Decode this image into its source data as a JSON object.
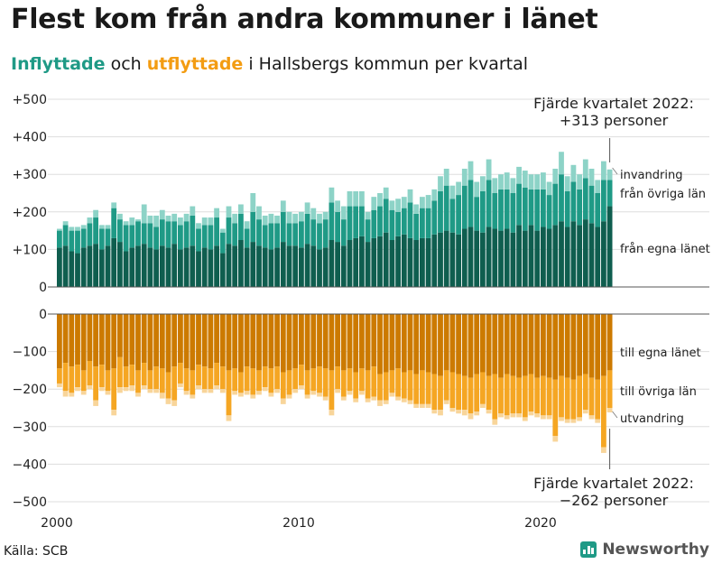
{
  "title": "Flest kom från andra kommuner i länet",
  "subtitle": {
    "part1": "Inflyttade",
    "part2": " och ",
    "part3": "utflyttade",
    "part4": " i Hallsbergs kommun per kvartal"
  },
  "source": "Källa: SCB",
  "brand": "Newsworthy",
  "colors": {
    "in_own": "#0f5e4f",
    "in_other": "#1f9a86",
    "in_immig": "#8dd3c7",
    "out_own": "#cc7a00",
    "out_other": "#f5a623",
    "out_emig": "#f8d59a",
    "subtitle_in": "#1f9a86",
    "subtitle_out": "#f39c12",
    "grid": "#dddddd",
    "brand": "#1f9a86"
  },
  "annotations": {
    "top_line1": "Fjärde kvartalet 2022:",
    "top_line2": "+313 personer",
    "bottom_line1": "Fjärde kvartalet 2022:",
    "bottom_line2": "−262 personer"
  },
  "series_labels": {
    "in_immig": "invandring",
    "in_other": "från övriga län",
    "in_own": "från egna länet",
    "out_own": "till egna länet",
    "out_other": "till övriga län",
    "out_emig": "utvandring"
  },
  "chart_data": {
    "type": "bar",
    "stacked": true,
    "title": "Flest kom från andra kommuner i länet",
    "subtitle": "Inflyttade och utflyttade i Hallsbergs kommun per kvartal",
    "x_start": "2000 Q1",
    "x_end": "2022 Q4",
    "x_ticks": [
      "2000",
      "2010",
      "2020"
    ],
    "y_ticks_top": [
      "+500",
      "+400",
      "+300",
      "+200",
      "+100",
      "0"
    ],
    "y_ticks_bottom": [
      "0",
      "−100",
      "−200",
      "−300",
      "−400",
      "−500"
    ],
    "ylim_top": [
      0,
      500
    ],
    "ylim_bottom": [
      -500,
      0
    ],
    "in_series": [
      {
        "name": "från egna länet",
        "values": [
          105,
          110,
          95,
          90,
          105,
          110,
          115,
          100,
          110,
          130,
          120,
          95,
          105,
          110,
          115,
          105,
          100,
          110,
          105,
          115,
          100,
          105,
          110,
          95,
          105,
          100,
          110,
          90,
          115,
          110,
          125,
          105,
          120,
          110,
          105,
          100,
          105,
          120,
          110,
          110,
          105,
          115,
          110,
          100,
          105,
          125,
          120,
          110,
          125,
          130,
          135,
          120,
          130,
          135,
          145,
          125,
          135,
          140,
          130,
          125,
          130,
          130,
          140,
          145,
          150,
          145,
          140,
          155,
          160,
          150,
          145,
          160,
          155,
          150,
          155,
          145,
          165,
          150,
          165,
          150,
          160,
          155,
          165,
          175,
          160,
          175,
          165,
          180,
          170,
          160,
          175,
          215
        ]
      },
      {
        "name": "från övriga län",
        "values": [
          45,
          55,
          55,
          60,
          50,
          60,
          70,
          55,
          45,
          80,
          60,
          70,
          60,
          65,
          55,
          65,
          60,
          70,
          70,
          60,
          65,
          70,
          80,
          60,
          60,
          65,
          75,
          55,
          70,
          60,
          70,
          50,
          80,
          70,
          60,
          70,
          65,
          80,
          60,
          60,
          70,
          80,
          70,
          70,
          75,
          100,
          80,
          70,
          90,
          85,
          80,
          60,
          75,
          80,
          90,
          80,
          65,
          70,
          95,
          70,
          80,
          80,
          90,
          110,
          120,
          90,
          105,
          115,
          125,
          90,
          110,
          125,
          95,
          110,
          105,
          105,
          110,
          115,
          95,
          110,
          100,
          90,
          110,
          125,
          95,
          105,
          95,
          110,
          100,
          90,
          110,
          70
        ]
      },
      {
        "name": "invandring",
        "values": [
          5,
          10,
          10,
          10,
          10,
          15,
          20,
          10,
          10,
          15,
          15,
          10,
          20,
          5,
          50,
          20,
          30,
          25,
          15,
          20,
          20,
          20,
          25,
          15,
          20,
          20,
          25,
          10,
          30,
          25,
          25,
          20,
          50,
          35,
          25,
          25,
          20,
          30,
          30,
          25,
          25,
          30,
          30,
          25,
          20,
          40,
          30,
          35,
          40,
          40,
          40,
          20,
          35,
          35,
          30,
          25,
          35,
          30,
          35,
          25,
          30,
          35,
          30,
          40,
          45,
          35,
          35,
          45,
          50,
          40,
          40,
          55,
          40,
          40,
          45,
          40,
          45,
          45,
          40,
          40,
          45,
          35,
          40,
          60,
          40,
          45,
          40,
          50,
          45,
          35,
          50,
          28
        ]
      }
    ],
    "out_series": [
      {
        "name": "till egna länet",
        "values": [
          145,
          130,
          140,
          135,
          150,
          125,
          140,
          135,
          150,
          145,
          115,
          140,
          135,
          150,
          130,
          150,
          140,
          145,
          155,
          140,
          130,
          145,
          150,
          135,
          140,
          145,
          130,
          140,
          150,
          145,
          155,
          140,
          145,
          150,
          140,
          145,
          140,
          155,
          150,
          145,
          135,
          150,
          145,
          140,
          145,
          150,
          140,
          150,
          145,
          155,
          145,
          150,
          140,
          160,
          155,
          150,
          145,
          155,
          150,
          160,
          150,
          155,
          160,
          165,
          150,
          155,
          160,
          165,
          170,
          160,
          155,
          165,
          160,
          170,
          160,
          165,
          170,
          165,
          160,
          170,
          165,
          170,
          175,
          165,
          170,
          175,
          165,
          160,
          170,
          175,
          165,
          150
        ]
      },
      {
        "name": "till övriga län",
        "values": [
          40,
          75,
          70,
          60,
          55,
          65,
          90,
          60,
          55,
          110,
          80,
          55,
          55,
          60,
          60,
          50,
          60,
          65,
          70,
          90,
          55,
          60,
          65,
          55,
          60,
          55,
          60,
          60,
          120,
          60,
          55,
          65,
          70,
          55,
          55,
          65,
          60,
          70,
          65,
          55,
          55,
          65,
          60,
          70,
          75,
          105,
          60,
          70,
          60,
          70,
          60,
          75,
          80,
          70,
          75,
          60,
          75,
          70,
          80,
          80,
          90,
          85,
          95,
          90,
          80,
          95,
          95,
          90,
          95,
          100,
          85,
          90,
          120,
          95,
          110,
          100,
          95,
          110,
          100,
          95,
          105,
          100,
          150,
          110,
          110,
          105,
          110,
          95,
          100,
          105,
          190,
          100
        ]
      },
      {
        "name": "utvandring",
        "values": [
          10,
          15,
          10,
          10,
          10,
          10,
          15,
          10,
          10,
          15,
          15,
          10,
          15,
          10,
          10,
          10,
          10,
          15,
          15,
          15,
          10,
          10,
          10,
          10,
          10,
          10,
          10,
          10,
          15,
          10,
          10,
          10,
          10,
          10,
          10,
          10,
          10,
          15,
          10,
          10,
          10,
          10,
          10,
          10,
          10,
          15,
          10,
          10,
          10,
          10,
          10,
          10,
          10,
          15,
          10,
          10,
          10,
          10,
          10,
          10,
          10,
          10,
          10,
          15,
          10,
          10,
          10,
          15,
          15,
          10,
          10,
          10,
          15,
          10,
          10,
          10,
          10,
          10,
          10,
          10,
          10,
          10,
          15,
          10,
          10,
          10,
          10,
          10,
          10,
          10,
          15,
          12
        ]
      }
    ]
  }
}
